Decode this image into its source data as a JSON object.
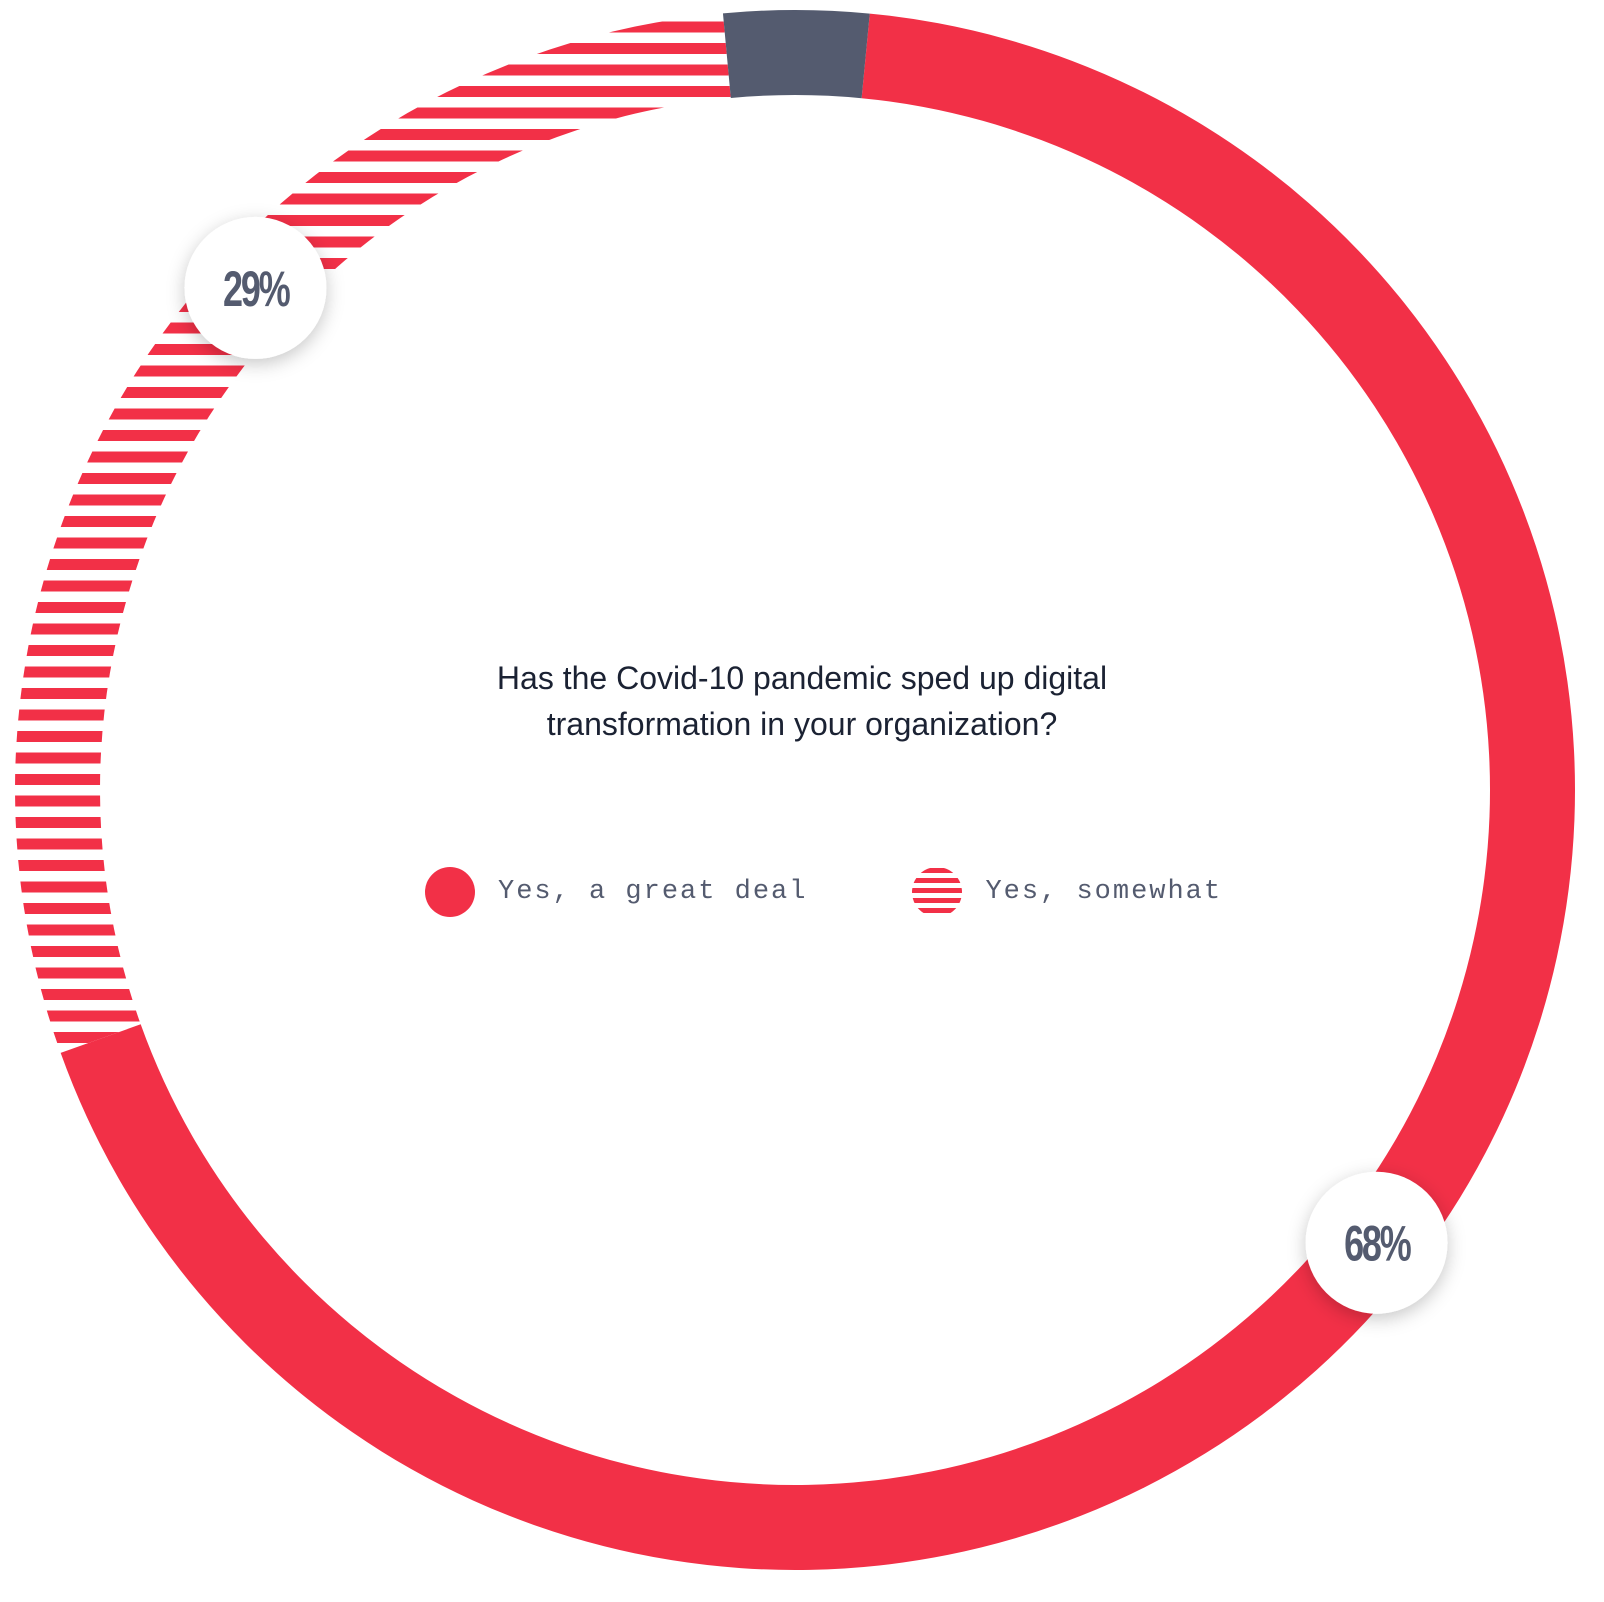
{
  "chart_data": {
    "type": "pie",
    "donut": true,
    "title": "Has the Covid-10 pandemic sped up digital transformation in your organization?",
    "title_lines": [
      "Has the Covid-10 pandemic sped up digital",
      "transformation in your organization?"
    ],
    "slices": [
      {
        "key": "great_deal",
        "name": "Yes, a great deal",
        "value": 68,
        "label": "68%",
        "color": "#f23047",
        "pattern": "solid",
        "in_legend": true
      },
      {
        "key": "somewhat",
        "name": "Yes, somewhat",
        "value": 29,
        "label": "29%",
        "color": "#f23047",
        "pattern": "horizontal-stripes",
        "in_legend": true
      },
      {
        "key": "other",
        "name": "",
        "value": 3,
        "label": "",
        "color": "#545b6f",
        "pattern": "solid",
        "in_legend": false
      }
    ],
    "legend_placement": "center",
    "colors": {
      "accent": "#f23047",
      "neutral": "#545b6f",
      "text": "#1b2233",
      "badge_fill": "#ffffff"
    }
  }
}
